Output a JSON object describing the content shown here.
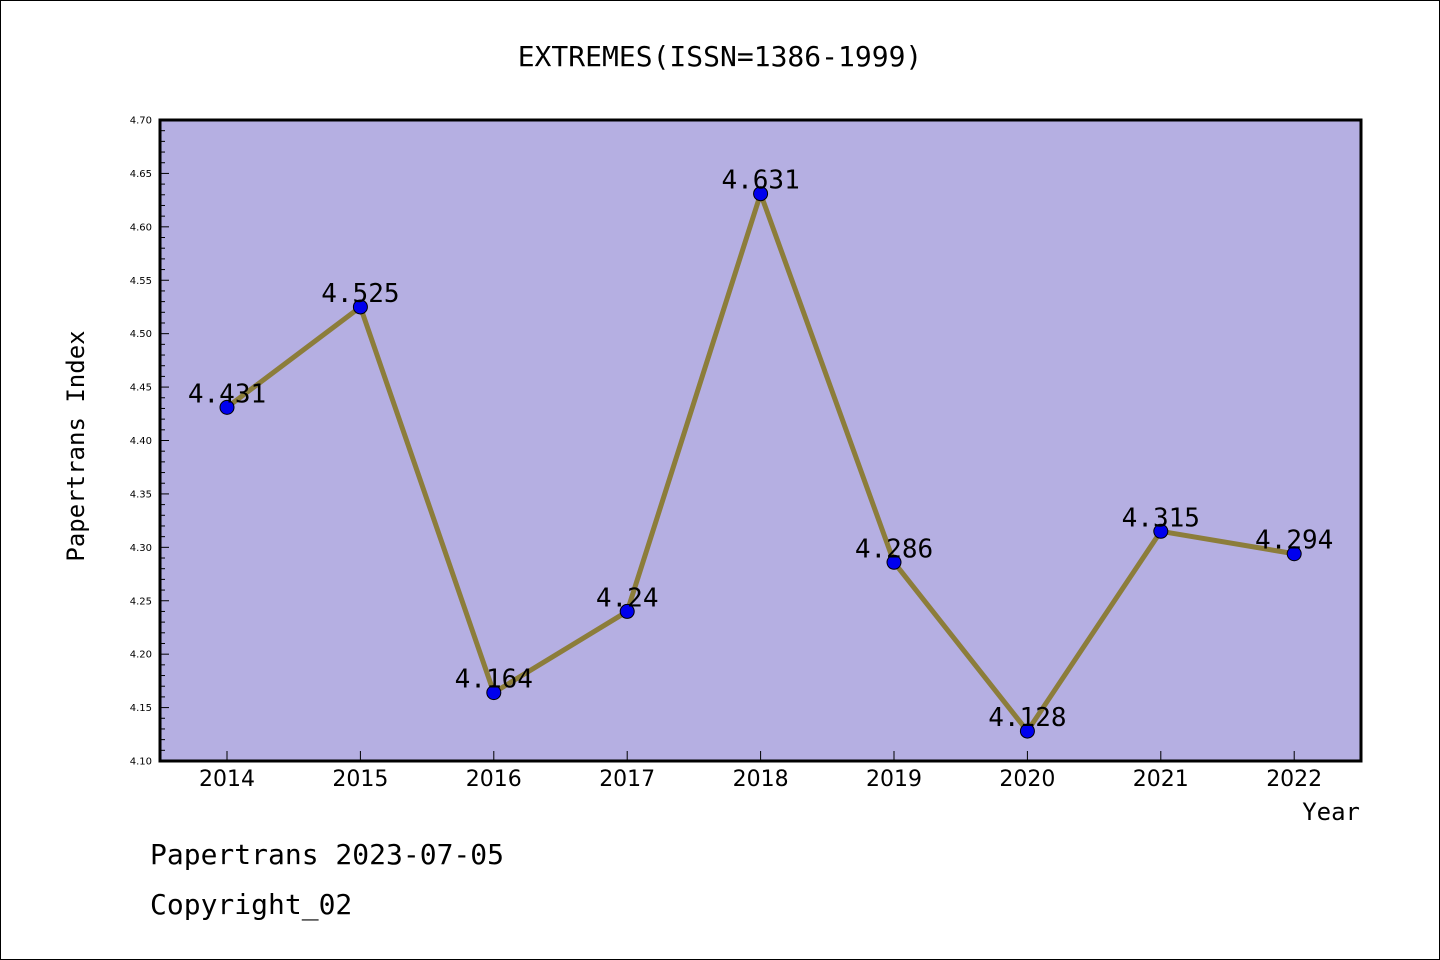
{
  "chart_data": {
    "type": "line",
    "title": "EXTREMES(ISSN=1386-1999)",
    "xlabel": "Year",
    "ylabel": "Papertrans Index",
    "categories": [
      "2014",
      "2015",
      "2016",
      "2017",
      "2018",
      "2019",
      "2020",
      "2021",
      "2022"
    ],
    "values": [
      4.431,
      4.525,
      4.164,
      4.24,
      4.631,
      4.286,
      4.128,
      4.315,
      4.294
    ],
    "data_labels": [
      "4.431",
      "4.525",
      "4.164",
      "4.24",
      "4.631",
      "4.286",
      "4.128",
      "4.315",
      "4.294"
    ],
    "ylim": [
      4.1,
      4.7
    ],
    "yticks": [
      "4.10",
      "4.15",
      "4.20",
      "4.25",
      "4.30",
      "4.35",
      "4.40",
      "4.45",
      "4.50",
      "4.55",
      "4.60",
      "4.65",
      "4.70"
    ],
    "grid": false,
    "colors": {
      "plot_background": "#b5afe2",
      "line": "#8c7d3a",
      "marker": "#0000ee"
    }
  },
  "footer": {
    "line1": "Papertrans 2023-07-05",
    "line2": "Copyright_02"
  }
}
